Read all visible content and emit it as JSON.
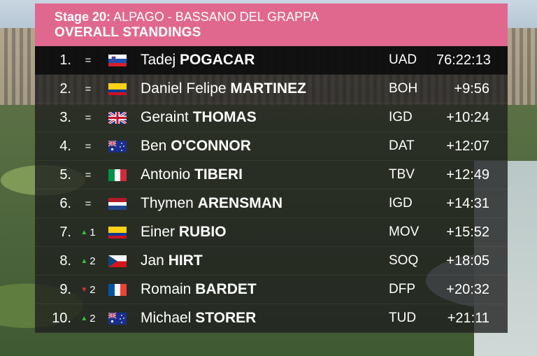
{
  "header": {
    "stage_number": "Stage 20:",
    "stage_route": "ALPAGO - BASSANO DEL GRAPPA",
    "title": "OVERALL STANDINGS"
  },
  "colors": {
    "header_bg": "#e0688f",
    "arrow_up": "#3fbf3f",
    "arrow_down": "#e03030"
  },
  "standings": [
    {
      "pos": "1.",
      "move": "=",
      "move_dir": "none",
      "flag": "slovenia-flag",
      "first": "Tadej",
      "last": "POGACAR",
      "team": "UAD",
      "time": "76:22:13"
    },
    {
      "pos": "2.",
      "move": "=",
      "move_dir": "none",
      "flag": "colombia-flag",
      "first": "Daniel Felipe",
      "last": "MARTINEZ",
      "team": "BOH",
      "time": "+9:56"
    },
    {
      "pos": "3.",
      "move": "=",
      "move_dir": "none",
      "flag": "great-britain-flag",
      "first": "Geraint",
      "last": "THOMAS",
      "team": "IGD",
      "time": "+10:24"
    },
    {
      "pos": "4.",
      "move": "=",
      "move_dir": "none",
      "flag": "australia-flag",
      "first": "Ben",
      "last": "O'CONNOR",
      "team": "DAT",
      "time": "+12:07"
    },
    {
      "pos": "5.",
      "move": "=",
      "move_dir": "none",
      "flag": "italy-flag",
      "first": "Antonio",
      "last": "TIBERI",
      "team": "TBV",
      "time": "+12:49"
    },
    {
      "pos": "6.",
      "move": "=",
      "move_dir": "none",
      "flag": "netherlands-flag",
      "first": "Thymen",
      "last": "ARENSMAN",
      "team": "IGD",
      "time": "+14:31"
    },
    {
      "pos": "7.",
      "move": "1",
      "move_dir": "up",
      "flag": "colombia-flag",
      "first": "Einer",
      "last": "RUBIO",
      "team": "MOV",
      "time": "+15:52"
    },
    {
      "pos": "8.",
      "move": "2",
      "move_dir": "up",
      "flag": "czech-flag",
      "first": "Jan",
      "last": "HIRT",
      "team": "SOQ",
      "time": "+18:05"
    },
    {
      "pos": "9.",
      "move": "2",
      "move_dir": "down",
      "flag": "france-flag",
      "first": "Romain",
      "last": "BARDET",
      "team": "DFP",
      "time": "+20:32"
    },
    {
      "pos": "10.",
      "move": "2",
      "move_dir": "up",
      "flag": "australia-flag",
      "first": "Michael",
      "last": "STORER",
      "team": "TUD",
      "time": "+21:11"
    }
  ]
}
